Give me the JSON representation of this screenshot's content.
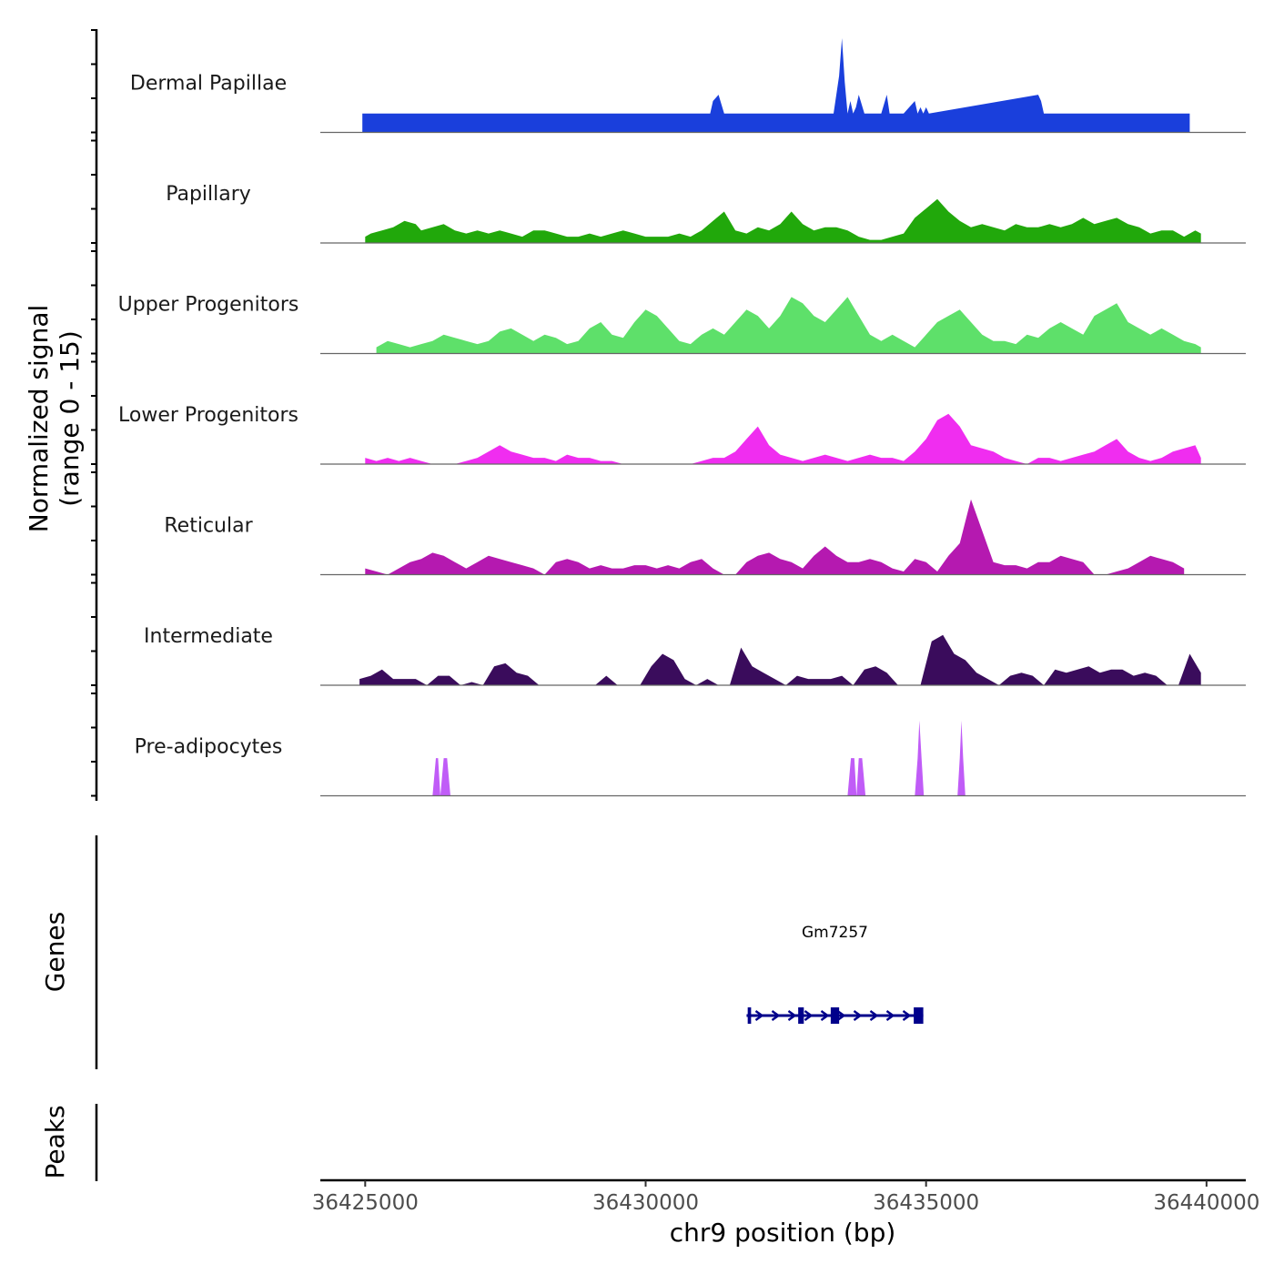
{
  "chart_data": {
    "type": "area",
    "title": "",
    "ylabel_line1": "Normalized signal",
    "ylabel_line2": "(range 0 - 15)",
    "ylim": [
      0,
      15
    ],
    "xlabel": "chr9 position (bp)",
    "xlim": [
      36424200,
      36440700
    ],
    "x_ticks": [
      36425000,
      36430000,
      36435000,
      36440000
    ],
    "x_tick_labels": [
      "36425000",
      "36430000",
      "36435000",
      "36440000"
    ],
    "genes_label": "Genes",
    "peaks_label": "Peaks",
    "series": [
      {
        "name": "Dermal Papillae",
        "color": "#1a3fdc",
        "x": [
          36424950,
          36425000,
          36431000,
          36431100,
          36431150,
          36431200,
          36431300,
          36431400,
          36432150,
          36432200,
          36432350,
          36432400,
          36433100,
          36433200,
          36433350,
          36433450,
          36433500,
          36433550,
          36433600,
          36433650,
          36433700,
          36433750,
          36433800,
          36433900,
          36434150,
          36434200,
          36434300,
          36434350,
          36434550,
          36434600,
          36434800,
          36434850,
          36434900,
          36434950,
          36435000,
          36435050,
          36437000,
          36437050,
          36437100,
          36438200,
          36438250,
          36438400,
          36439350,
          36439400,
          36439600,
          36439700
        ],
        "values": [
          3,
          3,
          3,
          3,
          3,
          5,
          6,
          3,
          3,
          3,
          3,
          3,
          3,
          3,
          3,
          9,
          15,
          8,
          3,
          5,
          3,
          4,
          6,
          3,
          3,
          3,
          6,
          3,
          3,
          3,
          5,
          3,
          4,
          3,
          4,
          3,
          6,
          5,
          3,
          3,
          3,
          3,
          3,
          3,
          3,
          3
        ]
      },
      {
        "name": "Papillary",
        "color": "#21a80b",
        "x": [
          36425000,
          36425100,
          36425300,
          36425500,
          36425700,
          36425900,
          36426000,
          36426200,
          36426400,
          36426600,
          36426800,
          36427000,
          36427200,
          36427400,
          36427600,
          36427800,
          36428000,
          36428200,
          36428400,
          36428600,
          36428800,
          36429000,
          36429200,
          36429400,
          36429600,
          36429800,
          36430000,
          36430200,
          36430400,
          36430600,
          36430800,
          36431000,
          36431200,
          36431400,
          36431600,
          36431800,
          36432000,
          36432200,
          36432400,
          36432600,
          36432800,
          36433000,
          36433200,
          36433400,
          36433600,
          36433800,
          36434000,
          36434200,
          36434400,
          36434600,
          36434800,
          36435000,
          36435200,
          36435400,
          36435600,
          36435800,
          36436000,
          36436200,
          36436400,
          36436600,
          36436800,
          36437000,
          36437200,
          36437400,
          36437600,
          36437800,
          36438000,
          36438200,
          36438400,
          36438600,
          36438800,
          36439000,
          36439200,
          36439400,
          36439600,
          36439800,
          36439900
        ],
        "values": [
          1,
          1.5,
          2,
          2.5,
          3.5,
          3,
          2,
          2.5,
          3,
          2,
          1.5,
          2,
          1.5,
          2,
          1.5,
          1,
          2,
          2,
          1.5,
          1,
          1,
          1.5,
          1,
          1.5,
          2,
          1.5,
          1,
          1,
          1,
          1.5,
          1,
          2,
          3.5,
          5,
          2,
          1.5,
          2.5,
          2,
          3,
          5,
          3,
          2,
          2.5,
          2.5,
          2,
          1,
          0.5,
          0.5,
          1,
          1.5,
          4,
          5.5,
          7,
          5,
          3.5,
          2.5,
          3,
          2.5,
          2,
          3,
          2.5,
          2.5,
          3,
          2.5,
          3,
          4,
          3,
          3.5,
          4,
          3,
          2.5,
          1.5,
          2,
          2,
          1,
          2,
          1.5
        ]
      },
      {
        "name": "Upper Progenitors",
        "color": "#5ee06a",
        "x": [
          36425200,
          36425400,
          36425600,
          36425800,
          36426000,
          36426200,
          36426400,
          36426600,
          36426800,
          36427000,
          36427200,
          36427400,
          36427600,
          36427800,
          36428000,
          36428200,
          36428400,
          36428600,
          36428800,
          36429000,
          36429200,
          36429400,
          36429600,
          36429800,
          36430000,
          36430200,
          36430400,
          36430600,
          36430800,
          36431000,
          36431200,
          36431400,
          36431600,
          36431800,
          36432000,
          36432200,
          36432400,
          36432600,
          36432800,
          36433000,
          36433200,
          36433400,
          36433600,
          36433800,
          36434000,
          36434200,
          36434400,
          36434600,
          36434800,
          36435000,
          36435200,
          36435400,
          36435600,
          36435800,
          36436000,
          36436200,
          36436400,
          36436600,
          36436800,
          36437000,
          36437200,
          36437400,
          36437600,
          36437800,
          36438000,
          36438200,
          36438400,
          36438600,
          36438800,
          36439000,
          36439200,
          36439400,
          36439600,
          36439800,
          36439900
        ],
        "values": [
          1,
          2,
          1.5,
          1,
          1.5,
          2,
          3,
          2.5,
          2,
          1.5,
          2,
          3.5,
          4,
          3,
          2,
          3,
          2.5,
          1.5,
          2,
          4,
          5,
          3,
          2.5,
          5,
          7,
          6,
          4,
          2,
          1.5,
          3,
          4,
          3,
          5,
          7,
          6,
          4,
          6,
          9,
          8,
          6,
          5,
          7,
          9,
          6,
          3,
          2,
          3,
          2,
          1,
          3,
          5,
          6,
          7,
          5,
          3,
          2,
          2,
          1.5,
          3,
          2.5,
          4,
          5,
          4,
          3,
          6,
          7,
          8,
          5,
          4,
          3,
          4,
          3,
          2,
          1.5,
          1
        ]
      },
      {
        "name": "Lower Progenitors",
        "color": "#f02df0",
        "x": [
          36425000,
          36425200,
          36425400,
          36425600,
          36425800,
          36426000,
          36426200,
          36426400,
          36426600,
          36426800,
          36427000,
          36427200,
          36427400,
          36427600,
          36427800,
          36428000,
          36428200,
          36428400,
          36428600,
          36428800,
          36429000,
          36429200,
          36429400,
          36429600,
          36429800,
          36430000,
          36430200,
          36430400,
          36430600,
          36430800,
          36431000,
          36431200,
          36431400,
          36431600,
          36431800,
          36432000,
          36432200,
          36432400,
          36432600,
          36432800,
          36433000,
          36433200,
          36433400,
          36433600,
          36433800,
          36434000,
          36434200,
          36434400,
          36434600,
          36434800,
          36435000,
          36435200,
          36435400,
          36435600,
          36435800,
          36436000,
          36436200,
          36436400,
          36436600,
          36436800,
          36437000,
          36437200,
          36437400,
          36437600,
          36437800,
          36438000,
          36438200,
          36438400,
          36438600,
          36438800,
          36439000,
          36439200,
          36439400,
          36439600,
          36439800,
          36439900
        ],
        "values": [
          1,
          0.5,
          1,
          0.5,
          1,
          0.5,
          0,
          0,
          0,
          0.5,
          1,
          2,
          3,
          2,
          1.5,
          1,
          1,
          0.5,
          1.5,
          1,
          1,
          0.5,
          0.5,
          0,
          0,
          0,
          0,
          0,
          0,
          0,
          0.5,
          1,
          1,
          2,
          4,
          6,
          3,
          1.5,
          1,
          0.5,
          1,
          1.5,
          1,
          0.5,
          1,
          1.5,
          1,
          1,
          0.5,
          2,
          4,
          7,
          8,
          6,
          3,
          2.5,
          2,
          1,
          0.5,
          0,
          1,
          1,
          0.5,
          1,
          1.5,
          2,
          3,
          4,
          2,
          1,
          0.5,
          1,
          2,
          2.5,
          3,
          1
        ]
      },
      {
        "name": "Reticular",
        "color": "#b519b0",
        "x": [
          36425000,
          36425200,
          36425400,
          36425600,
          36425800,
          36426000,
          36426200,
          36426400,
          36426600,
          36426800,
          36427000,
          36427200,
          36427400,
          36427600,
          36427800,
          36428000,
          36428200,
          36428400,
          36428600,
          36428800,
          36429000,
          36429200,
          36429400,
          36429600,
          36429800,
          36430000,
          36430200,
          36430400,
          36430600,
          36430800,
          36431000,
          36431200,
          36431400,
          36431600,
          36431800,
          36432000,
          36432200,
          36432400,
          36432600,
          36432800,
          36433000,
          36433200,
          36433400,
          36433600,
          36433800,
          36434000,
          36434200,
          36434400,
          36434600,
          36434800,
          36435000,
          36435200,
          36435400,
          36435600,
          36435800,
          36436000,
          36436200,
          36436400,
          36436600,
          36436800,
          36437000,
          36437200,
          36437400,
          36437600,
          36437800,
          36438000,
          36438200,
          36438400,
          36438600,
          36438800,
          36439000,
          36439200,
          36439400,
          36439600
        ],
        "values": [
          1,
          0.5,
          0,
          1,
          2,
          2.5,
          3.5,
          3,
          2,
          1,
          2,
          3,
          2.5,
          2,
          1.5,
          1,
          0,
          2,
          2.5,
          2,
          1,
          1.5,
          1,
          1,
          1.5,
          1.5,
          1,
          1.5,
          1,
          2,
          2.5,
          1,
          0,
          0,
          2,
          3,
          3.5,
          2.5,
          2,
          1,
          3,
          4.5,
          3,
          2,
          2,
          2.5,
          2,
          1,
          0.5,
          2.5,
          2,
          0.5,
          3,
          5,
          12,
          7,
          2,
          1.5,
          1.5,
          1,
          2,
          2,
          3,
          2.5,
          2,
          0,
          0,
          0.5,
          1,
          2,
          3,
          2.5,
          2,
          1
        ]
      },
      {
        "name": "Intermediate",
        "color": "#3a0c5c",
        "x": [
          36424900,
          36425100,
          36425300,
          36425500,
          36425700,
          36425900,
          36426100,
          36426300,
          36426500,
          36426700,
          36426900,
          36427100,
          36427300,
          36427500,
          36427700,
          36427900,
          36428100,
          36428300,
          36428500,
          36428700,
          36428900,
          36429100,
          36429300,
          36429500,
          36429700,
          36429900,
          36430100,
          36430300,
          36430500,
          36430700,
          36430900,
          36431100,
          36431300,
          36431500,
          36431700,
          36431900,
          36432100,
          36432300,
          36432500,
          36432700,
          36432900,
          36433100,
          36433300,
          36433500,
          36433700,
          36433900,
          36434100,
          36434300,
          36434500,
          36434700,
          36434900,
          36435100,
          36435300,
          36435500,
          36435700,
          36435900,
          36436100,
          36436300,
          36436500,
          36436700,
          36436900,
          36437100,
          36437300,
          36437500,
          36437700,
          36437900,
          36438100,
          36438300,
          36438500,
          36438700,
          36438900,
          36439100,
          36439300,
          36439500,
          36439700,
          36439900
        ],
        "values": [
          1,
          1.5,
          2.5,
          1,
          1,
          1,
          0,
          1.5,
          1.5,
          0,
          0.5,
          0,
          3,
          3.5,
          2,
          1.5,
          0,
          0,
          0,
          0,
          0,
          0,
          1.5,
          0,
          0,
          0,
          3,
          5,
          4,
          1,
          0,
          1,
          0,
          0,
          6,
          3,
          2,
          1,
          0,
          1.5,
          1,
          1,
          1,
          1.5,
          0,
          2.5,
          3,
          2,
          0,
          0,
          0,
          7,
          8,
          5,
          4,
          2,
          1,
          0,
          1.5,
          2,
          1.5,
          0,
          2.5,
          2,
          2.5,
          3,
          2,
          2.5,
          2.5,
          1.5,
          2,
          1.5,
          0,
          0,
          5,
          2
        ]
      },
      {
        "name": "Pre-adipocytes",
        "color": "#c05cf7",
        "x": [
          36426200,
          36426260,
          36426300,
          36426340,
          36426400,
          36426460,
          36426520,
          36433600,
          36433660,
          36433720,
          36433760,
          36433800,
          36433860,
          36433920,
          36434800,
          36434850,
          36434880,
          36434920,
          36434960,
          36435560,
          36435600,
          36435630,
          36435660,
          36435700
        ],
        "values": [
          0,
          6,
          6,
          0,
          6,
          6,
          0,
          0,
          6,
          6,
          0,
          6,
          6,
          0,
          0,
          6,
          12,
          6,
          0,
          0,
          6,
          12,
          6,
          0
        ]
      }
    ],
    "genes": [
      {
        "name": "Gm7257",
        "start": 36431800,
        "end": 36434950,
        "strand": "+",
        "color": "#00008b",
        "exons": [
          [
            36431820,
            36431880
          ],
          [
            36432720,
            36432820
          ],
          [
            36433300,
            36433450
          ],
          [
            36434780,
            36434950
          ]
        ]
      }
    ],
    "peaks": []
  }
}
